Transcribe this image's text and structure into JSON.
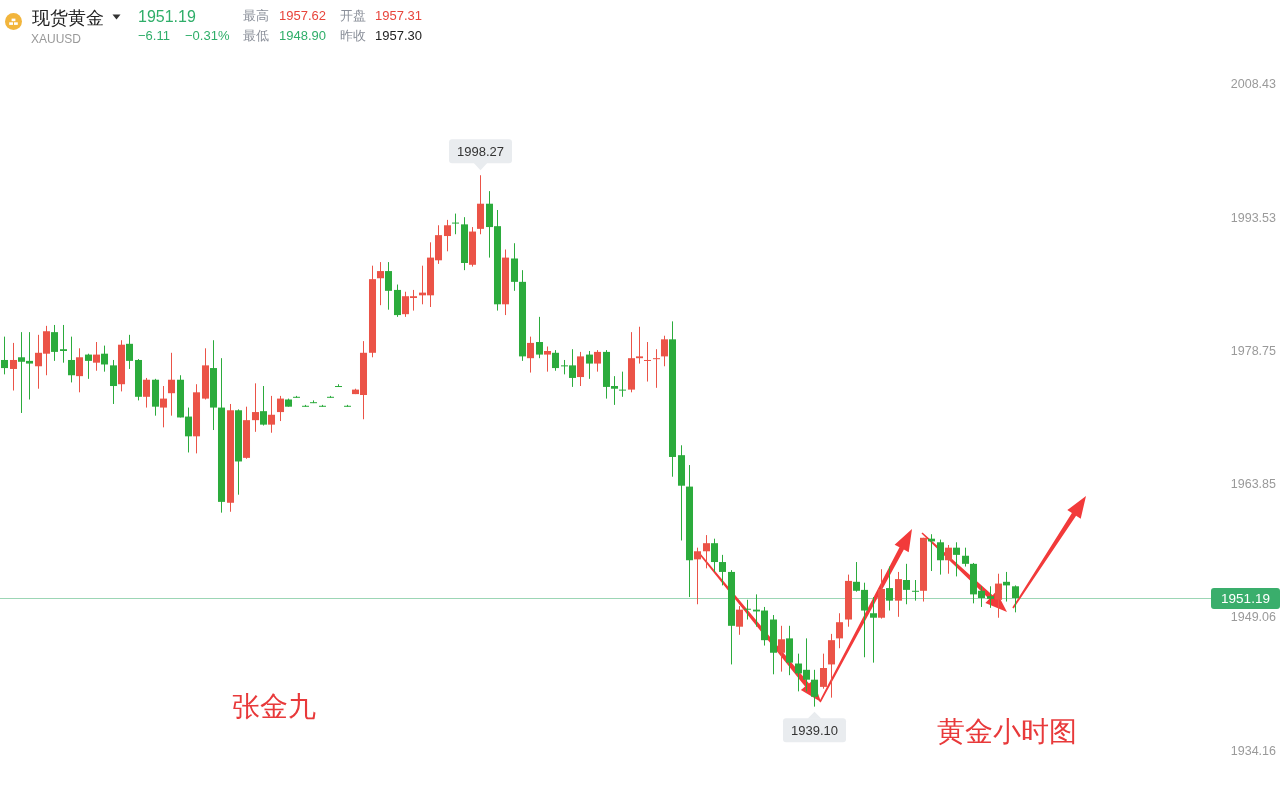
{
  "chart_data": {
    "type": "candlestick",
    "title": "现货黄金",
    "subtitle": "XAUUSD",
    "categories": [
      null,
      null,
      null,
      null,
      null,
      null,
      null,
      null,
      null,
      null,
      null,
      null,
      null,
      null,
      null,
      null,
      null,
      null,
      null,
      null,
      null,
      null,
      null,
      null,
      null,
      null,
      null,
      null,
      null,
      null,
      null,
      null,
      null,
      null,
      null,
      null,
      null,
      null,
      null,
      null,
      null,
      null,
      null,
      null,
      null,
      null,
      null,
      null,
      null,
      null,
      null,
      null,
      null,
      null,
      null,
      null,
      null,
      null,
      null,
      null,
      null,
      null,
      null,
      null,
      null,
      null,
      null,
      null,
      null,
      null,
      null,
      null,
      null,
      null,
      null,
      null,
      null,
      null,
      null,
      null,
      null,
      null,
      null,
      null,
      null,
      null,
      null,
      null,
      null,
      null,
      null,
      null,
      null,
      null,
      null,
      null,
      null,
      null,
      null,
      null,
      null,
      null,
      null,
      null,
      null,
      null,
      null,
      null,
      null,
      null,
      null,
      null,
      null,
      null,
      null,
      null,
      null,
      null,
      null,
      null,
      null,
      null,
      null,
      null,
      null,
      null,
      null,
      null,
      null,
      null,
      null,
      null,
      null,
      null,
      null,
      null,
      null,
      null,
      null,
      null,
      null,
      null,
      null,
      null,
      null
    ],
    "ohlc": [
      [
        1977.7,
        1980.3,
        1976.1,
        1976.8
      ],
      [
        1976.7,
        1979.6,
        1974.3,
        1977.7
      ],
      [
        1978.0,
        1980.8,
        1971.8,
        1977.5
      ],
      [
        1977.6,
        1980.8,
        1973.3,
        1977.3
      ],
      [
        1977.0,
        1980.5,
        1974.5,
        1978.5
      ],
      [
        1978.4,
        1981.5,
        1976.0,
        1980.9
      ],
      [
        1980.8,
        1981.6,
        1977.6,
        1978.6
      ],
      [
        1978.9,
        1981.6,
        1977.4,
        1978.7
      ],
      [
        1977.7,
        1980.3,
        1975.2,
        1976.0
      ],
      [
        1975.9,
        1979.0,
        1974.1,
        1978.0
      ],
      [
        1978.3,
        1978.4,
        1975.6,
        1977.6
      ],
      [
        1977.4,
        1979.7,
        1976.5,
        1978.3
      ],
      [
        1978.4,
        1979.3,
        1976.4,
        1977.2
      ],
      [
        1977.1,
        1977.7,
        1972.8,
        1974.8
      ],
      [
        1975.0,
        1979.9,
        1974.2,
        1979.4
      ],
      [
        1979.5,
        1980.5,
        1976.7,
        1977.6
      ],
      [
        1977.7,
        1977.8,
        1973.2,
        1973.6
      ],
      [
        1973.6,
        1975.7,
        1972.4,
        1975.5
      ],
      [
        1975.5,
        1975.6,
        1971.5,
        1972.5
      ],
      [
        1972.4,
        1974.8,
        1970.2,
        1973.4
      ],
      [
        1974.0,
        1978.5,
        1971.5,
        1975.5
      ],
      [
        1975.5,
        1976.0,
        1971.3,
        1971.3
      ],
      [
        1971.4,
        1972.4,
        1967.4,
        1969.2
      ],
      [
        1969.2,
        1975.0,
        1967.3,
        1974.1
      ],
      [
        1973.4,
        1979.0,
        1973.3,
        1977.1
      ],
      [
        1976.8,
        1979.9,
        1969.9,
        1972.4
      ],
      [
        1972.4,
        1977.9,
        1960.7,
        1961.9
      ],
      [
        1961.8,
        1972.8,
        1960.8,
        1972.1
      ],
      [
        1972.1,
        1972.2,
        1962.7,
        1966.4
      ],
      [
        1966.8,
        1972.5,
        1966.7,
        1971.0
      ],
      [
        1971.0,
        1975.1,
        1969.7,
        1971.9
      ],
      [
        1972.0,
        1974.8,
        1970.4,
        1970.5
      ],
      [
        1970.5,
        1973.7,
        1969.6,
        1971.6
      ],
      [
        1971.9,
        1973.7,
        1970.9,
        1973.4
      ],
      [
        1973.3,
        1973.4,
        1972.5,
        1972.5
      ],
      [
        1973.6,
        1973.7,
        1973.5,
        1973.5
      ],
      [
        1972.6,
        1972.7,
        1972.5,
        1972.5
      ],
      [
        1973.0,
        1973.2,
        1972.9,
        1972.9
      ],
      [
        1972.6,
        1972.7,
        1972.5,
        1972.5
      ],
      [
        1973.6,
        1973.7,
        1973.5,
        1973.5
      ],
      [
        1974.8,
        1975.0,
        1974.7,
        1974.7
      ],
      [
        1972.6,
        1972.7,
        1972.5,
        1972.5
      ],
      [
        1973.9,
        1974.5,
        1973.9,
        1974.4
      ],
      [
        1973.8,
        1979.8,
        1971.1,
        1978.5
      ],
      [
        1978.5,
        1988.2,
        1978.0,
        1986.7
      ],
      [
        1986.8,
        1988.6,
        1983.8,
        1987.6
      ],
      [
        1987.6,
        1988.6,
        1983.3,
        1985.4
      ],
      [
        1985.5,
        1986.1,
        1982.5,
        1982.7
      ],
      [
        1982.8,
        1985.3,
        1982.5,
        1984.8
      ],
      [
        1984.6,
        1985.5,
        1983.2,
        1984.8
      ],
      [
        1984.9,
        1988.2,
        1983.9,
        1985.2
      ],
      [
        1984.9,
        1990.8,
        1983.6,
        1989.1
      ],
      [
        1988.8,
        1992.7,
        1988.4,
        1991.6
      ],
      [
        1991.5,
        1993.3,
        1989.8,
        1992.7
      ],
      [
        1993.0,
        1994.0,
        1991.7,
        1992.9
      ],
      [
        1992.8,
        1993.6,
        1987.7,
        1988.5
      ],
      [
        1988.3,
        1992.5,
        1988.1,
        1992.0
      ],
      [
        1992.3,
        1998.27,
        1991.7,
        1995.1
      ],
      [
        1995.1,
        1996.5,
        1989.1,
        1992.5
      ],
      [
        1992.6,
        1994.4,
        1983.2,
        1983.9
      ],
      [
        1983.9,
        1990.0,
        1982.7,
        1989.1
      ],
      [
        1989.0,
        1990.7,
        1985.4,
        1986.4
      ],
      [
        1986.4,
        1987.7,
        1977.6,
        1978.1
      ],
      [
        1977.9,
        1980.3,
        1976.3,
        1979.6
      ],
      [
        1979.7,
        1982.5,
        1977.9,
        1978.3
      ],
      [
        1978.3,
        1979.2,
        1976.4,
        1978.7
      ],
      [
        1978.5,
        1978.8,
        1976.5,
        1976.8
      ],
      [
        1977.1,
        1977.7,
        1976.1,
        1977.0
      ],
      [
        1977.1,
        1978.9,
        1974.7,
        1975.7
      ],
      [
        1975.8,
        1978.6,
        1974.8,
        1978.1
      ],
      [
        1978.3,
        1978.7,
        1975.6,
        1977.3
      ],
      [
        1977.3,
        1978.8,
        1976.4,
        1978.6
      ],
      [
        1978.6,
        1978.8,
        1973.4,
        1974.7
      ],
      [
        1974.8,
        1975.9,
        1972.7,
        1974.5
      ],
      [
        1974.4,
        1976.4,
        1973.6,
        1974.3
      ],
      [
        1974.4,
        1980.8,
        1974.1,
        1977.9
      ],
      [
        1977.9,
        1981.4,
        1977.3,
        1978.1
      ],
      [
        1977.6,
        1979.7,
        1975.3,
        1977.7
      ],
      [
        1977.8,
        1978.9,
        1974.6,
        1977.9
      ],
      [
        1978.1,
        1980.4,
        1977.0,
        1980.0
      ],
      [
        1980.0,
        1982.0,
        1964.7,
        1966.9
      ],
      [
        1967.1,
        1968.2,
        1957.6,
        1963.7
      ],
      [
        1963.6,
        1966.0,
        1951.3,
        1955.4
      ],
      [
        1955.5,
        1956.8,
        1950.5,
        1956.4
      ],
      [
        1956.4,
        1958.2,
        1954.5,
        1957.3
      ],
      [
        1957.3,
        1957.8,
        1954.1,
        1955.2
      ],
      [
        1955.2,
        1956.0,
        1952.6,
        1954.1
      ],
      [
        1954.1,
        1954.3,
        1943.8,
        1948.1
      ],
      [
        1948.0,
        1950.3,
        1947.1,
        1949.9
      ],
      [
        1950.0,
        1951.0,
        1948.8,
        1949.9
      ],
      [
        1949.9,
        1951.6,
        1948.0,
        1949.7
      ],
      [
        1949.8,
        1950.2,
        1945.9,
        1946.5
      ],
      [
        1948.8,
        1949.3,
        1942.7,
        1945.1
      ],
      [
        1945.1,
        1948.1,
        1943.0,
        1946.6
      ],
      [
        1946.7,
        1948.1,
        1942.6,
        1944.0
      ],
      [
        1943.9,
        1945.0,
        1940.8,
        1942.8
      ],
      [
        1943.2,
        1946.7,
        1940.8,
        1942.1
      ],
      [
        1942.1,
        1943.2,
        1939.1,
        1940.2
      ],
      [
        1941.3,
        1945.0,
        1941.1,
        1943.4
      ],
      [
        1943.8,
        1947.2,
        1940.1,
        1946.5
      ],
      [
        1946.7,
        1949.5,
        1945.6,
        1948.5
      ],
      [
        1948.8,
        1953.8,
        1948.0,
        1953.1
      ],
      [
        1953.0,
        1955.2,
        1951.9,
        1952.0
      ],
      [
        1952.1,
        1952.9,
        1944.6,
        1949.8
      ],
      [
        1949.5,
        1951.3,
        1944.0,
        1949.0
      ],
      [
        1949.0,
        1954.4,
        1948.9,
        1952.2
      ],
      [
        1952.3,
        1954.7,
        1949.8,
        1950.9
      ],
      [
        1950.9,
        1954.1,
        1949.1,
        1953.3
      ],
      [
        1953.2,
        1955.0,
        1950.5,
        1952.1
      ],
      [
        1952.0,
        1953.2,
        1950.9,
        1951.9
      ],
      [
        1952.0,
        1957.9,
        1950.8,
        1957.9
      ],
      [
        1957.8,
        1958.3,
        1954.2,
        1957.5
      ],
      [
        1957.4,
        1957.7,
        1953.8,
        1955.4
      ],
      [
        1955.4,
        1957.1,
        1953.9,
        1956.8
      ],
      [
        1956.8,
        1957.4,
        1953.6,
        1956.0
      ],
      [
        1955.9,
        1956.8,
        1954.7,
        1955.0
      ],
      [
        1955.0,
        1955.1,
        1950.6,
        1951.6
      ],
      [
        1952.0,
        1952.5,
        1950.2,
        1951.2
      ],
      [
        1951.4,
        1952.5,
        1950.1,
        1951.1
      ],
      [
        1951.0,
        1953.9,
        1949.0,
        1952.8
      ],
      [
        1953.0,
        1954.1,
        1950.8,
        1952.6
      ],
      [
        1952.5,
        1952.6,
        1949.6,
        1951.19
      ],
      null,
      null,
      null,
      null,
      null,
      null,
      null,
      null,
      null,
      null,
      null,
      null,
      null,
      null,
      null,
      null,
      null,
      null,
      null,
      null,
      null,
      null,
      null
    ],
    "colors": [
      "#2bab3c",
      "#eb5347",
      "#2bab3c",
      "#2bab3c",
      "#eb5347",
      "#eb5347",
      "#2bab3c",
      "#2bab3c",
      "#2bab3c",
      "#eb5347",
      "#2bab3c",
      "#eb5347",
      "#2bab3c",
      "#2bab3c",
      "#eb5347",
      "#2bab3c",
      "#2bab3c",
      "#eb5347",
      "#2bab3c",
      "#eb5347",
      "#eb5347",
      "#2bab3c",
      "#2bab3c",
      "#eb5347",
      "#eb5347",
      "#2bab3c",
      "#2bab3c",
      "#eb5347",
      "#2bab3c",
      "#eb5347",
      "#eb5347",
      "#2bab3c",
      "#eb5347",
      "#eb5347",
      "#2bab3c",
      "#2bab3c",
      "#2bab3c",
      "#2bab3c",
      "#2bab3c",
      "#2bab3c",
      "#2bab3c",
      "#2bab3c",
      "#eb5347",
      "#eb5347",
      "#eb5347",
      "#eb5347",
      "#2bab3c",
      "#2bab3c",
      "#eb5347",
      "#eb5347",
      "#eb5347",
      "#eb5347",
      "#eb5347",
      "#eb5347",
      "#2bab3c",
      "#2bab3c",
      "#eb5347",
      "#eb5347",
      "#2bab3c",
      "#2bab3c",
      "#eb5347",
      "#2bab3c",
      "#2bab3c",
      "#eb5347",
      "#2bab3c",
      "#eb5347",
      "#2bab3c",
      "#2bab3c",
      "#2bab3c",
      "#eb5347",
      "#2bab3c",
      "#eb5347",
      "#2bab3c",
      "#2bab3c",
      "#2bab3c",
      "#eb5347",
      "#eb5347",
      "#eb5347",
      "#eb5347",
      "#eb5347",
      "#2bab3c",
      "#2bab3c",
      "#2bab3c",
      "#eb5347",
      "#eb5347",
      "#2bab3c",
      "#2bab3c",
      "#2bab3c",
      "#eb5347",
      "#2bab3c",
      "#2bab3c",
      "#2bab3c",
      "#2bab3c",
      "#eb5347",
      "#2bab3c",
      "#2bab3c",
      "#2bab3c",
      "#2bab3c",
      "#eb5347",
      "#eb5347",
      "#eb5347",
      "#eb5347",
      "#2bab3c",
      "#2bab3c",
      "#2bab3c",
      "#eb5347",
      "#2bab3c",
      "#eb5347",
      "#2bab3c",
      "#2bab3c",
      "#eb5347",
      "#2bab3c",
      "#2bab3c",
      "#eb5347",
      "#2bab3c",
      "#2bab3c",
      "#2bab3c",
      "#2bab3c",
      "#2bab3c",
      "#eb5347",
      "#2bab3c",
      "#2bab3c",
      null,
      null,
      null,
      null,
      null,
      null,
      null,
      null,
      null,
      null,
      null,
      null,
      null,
      null,
      null,
      null,
      null,
      null,
      null,
      null,
      null,
      null,
      null
    ],
    "ylim": [
      1934.16,
      2008.43
    ],
    "yticks": [
      2008.43,
      1993.53,
      1978.75,
      1963.85,
      1949.06,
      1934.16
    ],
    "tick_labels": "y",
    "ref_lines": [
      {
        "axis": "y",
        "value": 1951.19,
        "label": "1951.19",
        "color": "#3aae6c"
      }
    ],
    "annotations": [
      "1951.19",
      "−6.11",
      "−0.31%",
      "最高",
      "1957.62",
      "开盘",
      "1957.31",
      "最低",
      "1948.90",
      "昨收",
      "1957.30",
      "1998.27",
      "1939.10",
      "张金九",
      "黄金小时图"
    ]
  }
}
